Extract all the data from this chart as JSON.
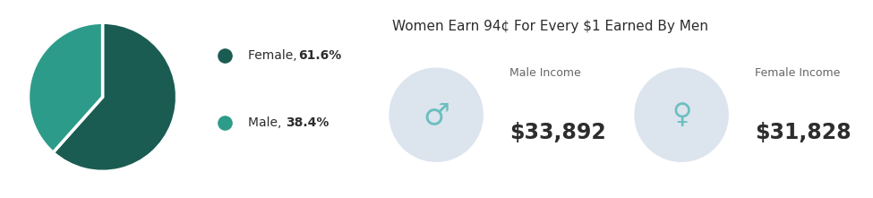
{
  "pie_values": [
    61.6,
    38.4
  ],
  "pie_colors": [
    "#1a5c52",
    "#2d9b8a"
  ],
  "pie_labels": [
    "Female, 61.6%",
    "Male, 38.4%"
  ],
  "legend_colors": [
    "#1a5c52",
    "#2d9b8a"
  ],
  "title": "Women Earn 94¢ For Every $1 Earned By Men",
  "male_income_label": "Male Income",
  "male_income_value": "$33,892",
  "female_income_label": "Female Income",
  "female_income_value": "$31,828",
  "bg_color": "#ffffff",
  "panel_color": "#e8ecf2",
  "icon_circle_color": "#dce4ee",
  "icon_color": "#6bbfbf",
  "text_dark": "#2d2d2d",
  "text_medium": "#666666",
  "legend_dot_size": 120
}
